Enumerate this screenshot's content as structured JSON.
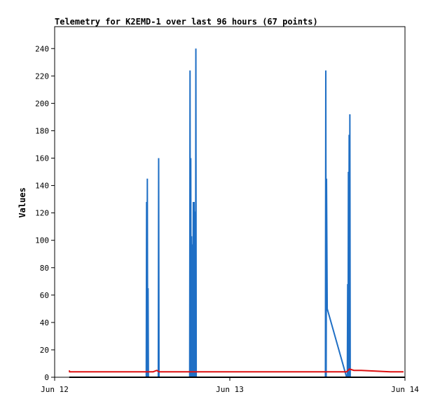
{
  "chart_data": {
    "type": "line",
    "title": "Telemetry for K2EMD-1 over last 96 hours (67 points)",
    "xlabel": "",
    "ylabel": "Values",
    "x_ticks": [
      "Jun 12",
      "Jun 13",
      "Jun 14"
    ],
    "y_ticks": [
      "0",
      "20",
      "40",
      "60",
      "80",
      "100",
      "120",
      "140",
      "160",
      "180",
      "200",
      "220",
      "240"
    ],
    "xlim_hours": [
      0,
      48
    ],
    "ylim": [
      0,
      256
    ],
    "grid": false,
    "series": [
      {
        "color": "#1f6fc5",
        "x_hours": [
          12.55,
          12.6,
          12.65,
          12.7,
          12.75,
          12.8,
          12.85,
          14.2,
          14.25,
          14.3,
          18.5,
          18.55,
          18.6,
          18.65,
          18.7,
          18.75,
          18.8,
          18.85,
          18.9,
          19.0,
          19.05,
          19.1,
          19.15,
          19.2,
          19.3,
          19.35,
          19.4,
          37.1,
          37.15,
          37.2,
          37.25,
          37.35,
          40.0,
          40.1,
          40.15,
          40.2,
          40.25,
          40.3,
          40.35,
          40.4,
          40.45,
          40.5,
          40.6
        ],
        "values": [
          0,
          128,
          0,
          145,
          0,
          65,
          0,
          0,
          160,
          0,
          0,
          224,
          0,
          160,
          0,
          103,
          0,
          97,
          0,
          128,
          0,
          128,
          0,
          121,
          0,
          240,
          0,
          0,
          224,
          0,
          145,
          50,
          0,
          0,
          68,
          0,
          150,
          0,
          177,
          0,
          192,
          0,
          0
        ]
      },
      {
        "color": "#dd1111",
        "x_hours": [
          2.0,
          2.05,
          12.5,
          13.0,
          13.5,
          14.0,
          14.3,
          40.0,
          40.4,
          41.0,
          42.0,
          46.0,
          47.8
        ],
        "values": [
          5,
          4,
          4,
          4,
          4,
          5,
          4,
          4,
          6,
          5,
          5,
          4,
          4
        ]
      },
      {
        "color": "#000000",
        "x_hours": [
          2.0,
          48.0
        ],
        "values": [
          0,
          0
        ]
      }
    ]
  }
}
